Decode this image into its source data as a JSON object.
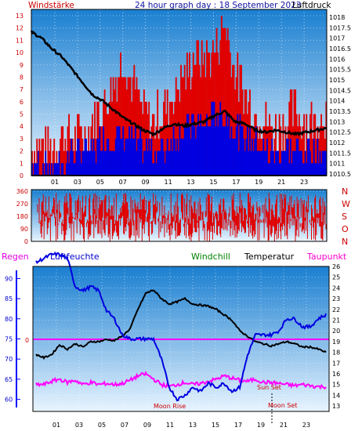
{
  "colors": {
    "red": "#e00000",
    "blue": "#0000e0",
    "black": "#000000",
    "magenta": "#ff00ff",
    "green": "#008000",
    "panel_top": "#1a7fd0",
    "panel_bottom": "#e8f4ff"
  },
  "labels": {
    "windstarke": "Windstärke",
    "title": "24 hour graph day : 18 September 2023",
    "luftdruck": "Luftdruck",
    "regen": "Regen",
    "luftfeuchte": "Luftfeuchte",
    "windchill": "Windchill",
    "temperatur": "Temperatur",
    "taupunkt": "Taupunkt",
    "sun_set": "Sun Set",
    "moon_rise": "Moon Rise",
    "moon_set": "Moon Set"
  },
  "chart_data": [
    {
      "type": "bar",
      "name": "wind",
      "hour_ticks": [
        "01",
        "03",
        "05",
        "07",
        "09",
        "11",
        "13",
        "15",
        "17",
        "19",
        "21",
        "23"
      ],
      "wind_ticks": [
        "0",
        "1",
        "2",
        "3",
        "4",
        "5",
        "6",
        "7",
        "8",
        "9",
        "10",
        "11",
        "12",
        "13"
      ],
      "pressure_ticks": [
        "1018",
        "1017.5",
        "1017",
        "1016.5",
        "1016",
        "1015.5",
        "1015",
        "1014.5",
        "1014",
        "1013.5",
        "1013",
        "1012.5",
        "1012",
        "1011.5",
        "1011",
        "1010.5"
      ],
      "wind_ylim": [
        0,
        13
      ],
      "pressure_ylim": [
        1010.5,
        1018
      ],
      "pressure_hourly": [
        1017.3,
        1017.0,
        1016.5,
        1016.1,
        1015.5,
        1014.9,
        1014.3,
        1014.0,
        1013.6,
        1013.2,
        1012.9,
        1012.6,
        1012.4,
        1012.7,
        1012.9,
        1012.8,
        1012.9,
        1013.0,
        1013.3,
        1013.5,
        1013.0,
        1012.9,
        1012.6,
        1012.5,
        1012.6,
        1012.5,
        1012.4,
        1012.5,
        1012.6,
        1012.7
      ],
      "gust_hourly": [
        2,
        2,
        2,
        3,
        3,
        3,
        4,
        5,
        7,
        9,
        7,
        5,
        4,
        5,
        6,
        8,
        9,
        9,
        10,
        12,
        8,
        6,
        5,
        4,
        3,
        4,
        5,
        4,
        4,
        5
      ],
      "speed_hourly": [
        1,
        1,
        1,
        1,
        2,
        2,
        2,
        3,
        3,
        3,
        3,
        2,
        2,
        2,
        3,
        4,
        4,
        4,
        5,
        5,
        4,
        3,
        3,
        2,
        2,
        2,
        2,
        2,
        2,
        2
      ]
    },
    {
      "type": "bar",
      "name": "wind-direction",
      "dir_ticks": [
        "360",
        "270",
        "180",
        "90",
        "0"
      ],
      "dir_letters": [
        "N",
        "W",
        "S",
        "O",
        "N"
      ],
      "ylim": [
        0,
        360
      ]
    },
    {
      "type": "line",
      "name": "climate",
      "hum_ticks": [
        "90",
        "85",
        "80",
        "75",
        "70",
        "65",
        "60"
      ],
      "temp_ticks": [
        "26",
        "25",
        "24",
        "23",
        "22",
        "21",
        "20",
        "19",
        "18",
        "17",
        "16",
        "15",
        "14",
        "13"
      ],
      "hum_ylim": [
        57,
        93
      ],
      "temp_ylim": [
        12.5,
        26
      ],
      "rain_value": "0",
      "humidity_hourly": [
        94,
        95,
        96,
        96,
        95,
        88,
        87,
        88,
        87,
        82,
        80,
        76,
        75,
        75,
        75,
        75,
        70,
        63,
        60,
        61,
        63,
        62,
        64,
        63,
        64,
        62,
        63,
        71,
        76,
        76,
        76,
        77,
        80,
        80,
        78,
        78,
        80,
        81
      ],
      "temperature_hourly": [
        17.8,
        17.5,
        17.8,
        18.7,
        18.3,
        18.8,
        18.5,
        19.0,
        19.0,
        19.2,
        19.1,
        19.5,
        20.2,
        22.0,
        23.5,
        23.8,
        23.0,
        22.5,
        22.7,
        23.0,
        22.5,
        22.4,
        22.3,
        22.0,
        21.5,
        21.0,
        20.0,
        19.5,
        19.0,
        18.8,
        18.6,
        18.8,
        19.0,
        18.8,
        18.5,
        18.5,
        18.3,
        18.0
      ],
      "dewpoint_hourly": [
        15.0,
        15.0,
        15.3,
        15.5,
        15.2,
        15.4,
        15.0,
        15.2,
        15.0,
        15.1,
        15.0,
        15.1,
        15.4,
        15.8,
        16.0,
        15.5,
        15.0,
        14.8,
        15.0,
        15.2,
        15.0,
        15.1,
        15.3,
        15.5,
        15.8,
        15.6,
        15.4,
        15.3,
        15.5,
        15.2,
        15.2,
        15.1,
        15.0,
        14.9,
        15.0,
        14.9,
        14.8,
        14.8
      ]
    }
  ]
}
